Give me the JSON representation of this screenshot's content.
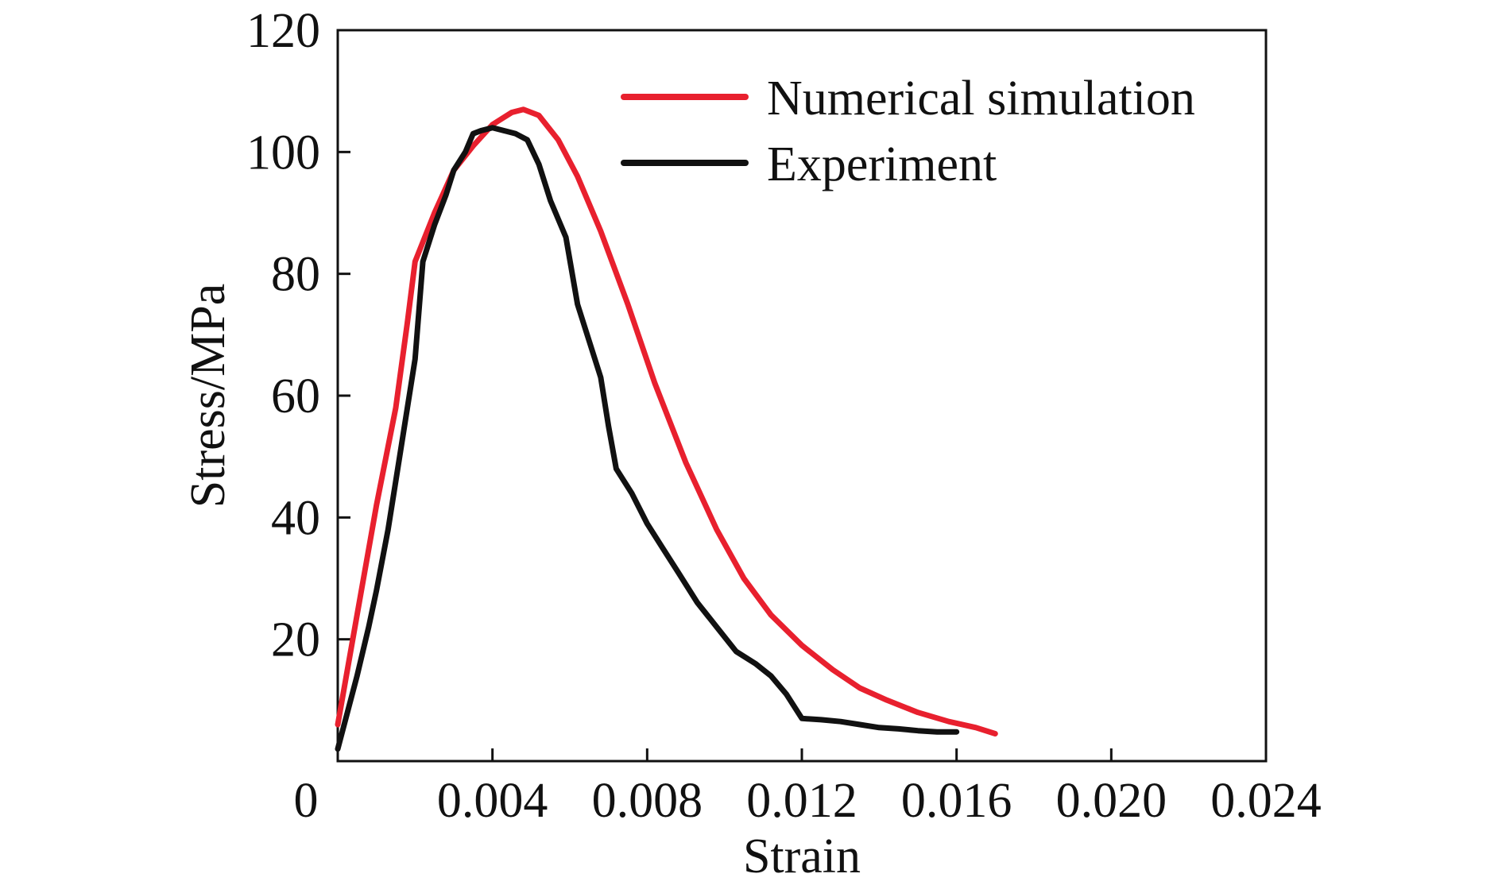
{
  "chart_data": {
    "type": "line",
    "xlabel": "Strain",
    "ylabel": "Stress/MPa",
    "xlim": [
      0,
      0.024
    ],
    "ylim": [
      0,
      120
    ],
    "x_ticks": [
      "0",
      "0.004",
      "0.008",
      "0.012",
      "0.016",
      "0.020",
      "0.024"
    ],
    "x_tick_values": [
      0,
      0.004,
      0.008,
      0.012,
      0.016,
      0.02,
      0.024
    ],
    "y_ticks": [
      "20",
      "40",
      "60",
      "80",
      "100",
      "120"
    ],
    "y_tick_values": [
      20,
      40,
      60,
      80,
      100,
      120
    ],
    "grid": false,
    "legend_position": "top-right",
    "series": [
      {
        "name": "Numerical simulation",
        "color": "#e8202e",
        "x": [
          0,
          0.0005,
          0.001,
          0.0015,
          0.0018,
          0.002,
          0.0025,
          0.003,
          0.0035,
          0.004,
          0.0045,
          0.0048,
          0.0052,
          0.0057,
          0.0062,
          0.0068,
          0.0075,
          0.0082,
          0.009,
          0.0098,
          0.0105,
          0.0112,
          0.012,
          0.0128,
          0.0135,
          0.0142,
          0.015,
          0.0158,
          0.0165,
          0.017
        ],
        "y": [
          6,
          24,
          42,
          58,
          72,
          82,
          90,
          97,
          101,
          104.5,
          106.5,
          107,
          106,
          102,
          96,
          87,
          75,
          62,
          49,
          38,
          30,
          24,
          19,
          15,
          12,
          10,
          8,
          6.5,
          5.5,
          4.5
        ]
      },
      {
        "name": "Experiment",
        "color": "#111111",
        "x": [
          0,
          0.0005,
          0.0008,
          0.001,
          0.0013,
          0.0016,
          0.0018,
          0.002,
          0.0022,
          0.0025,
          0.0028,
          0.003,
          0.0033,
          0.0035,
          0.0037,
          0.004,
          0.0043,
          0.0046,
          0.0049,
          0.0052,
          0.0055,
          0.0059,
          0.0062,
          0.0065,
          0.0068,
          0.007,
          0.0072,
          0.0076,
          0.008,
          0.0084,
          0.0088,
          0.0093,
          0.0098,
          0.0103,
          0.0108,
          0.011,
          0.0112,
          0.0116,
          0.012,
          0.0125,
          0.013,
          0.0135,
          0.014,
          0.0145,
          0.015,
          0.0155,
          0.016
        ],
        "y": [
          2,
          14,
          22,
          28,
          38,
          50,
          58,
          66,
          82,
          88,
          93,
          97,
          100,
          103,
          103.5,
          104,
          103.5,
          103,
          102,
          98,
          92,
          86,
          75,
          69,
          63,
          55,
          48,
          44,
          39,
          35,
          31,
          26,
          22,
          18,
          16,
          15,
          14,
          11,
          7,
          6.8,
          6.5,
          6,
          5.5,
          5.3,
          5,
          4.8,
          4.8
        ]
      }
    ]
  }
}
